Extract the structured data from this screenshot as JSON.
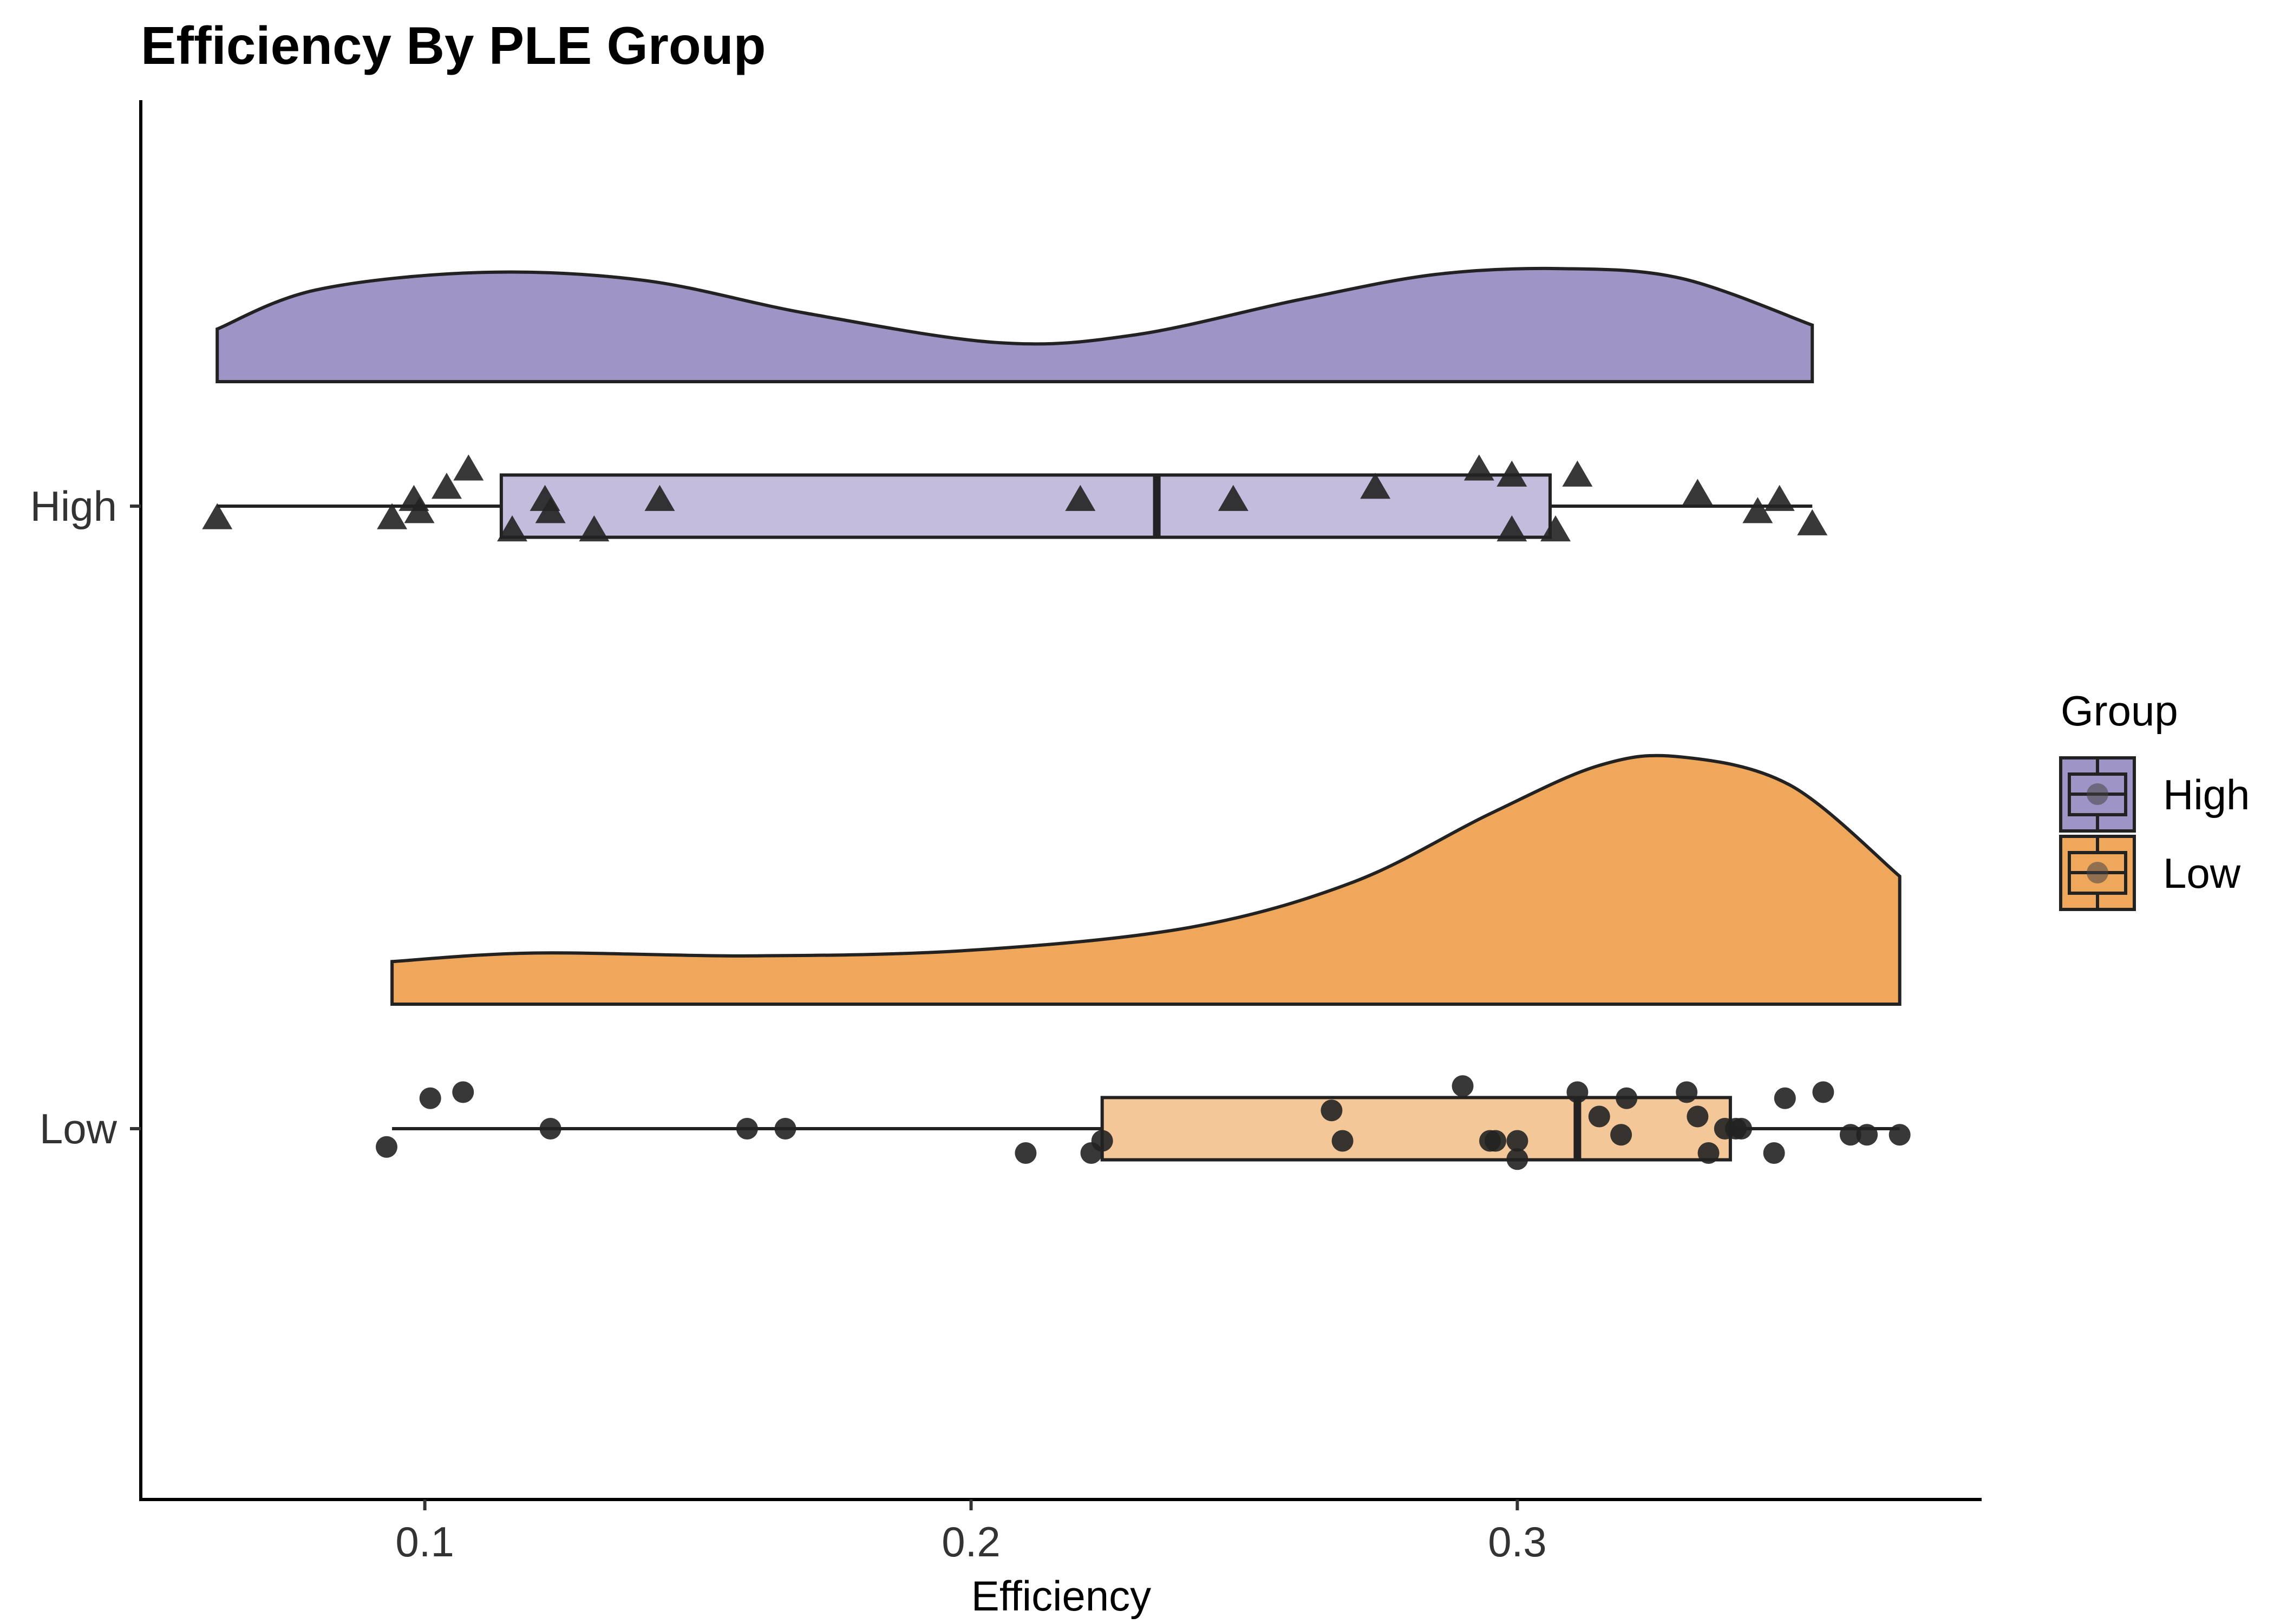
{
  "chart_data": {
    "type": "raincloud",
    "title": "Efficiency By PLE Group",
    "xlabel": "Efficiency",
    "ylabel": "",
    "xlim": [
      0.048,
      0.385
    ],
    "xticks": [
      0.1,
      0.2,
      0.3
    ],
    "xtick_labels": [
      "0.1",
      "0.2",
      "0.3"
    ],
    "categories": [
      "High",
      "Low"
    ],
    "legend": {
      "title": "Group",
      "position": "right",
      "entries": [
        "High",
        "Low"
      ]
    },
    "colors": {
      "High": "#9f94c6",
      "High_box": "#c3bcdc",
      "Low": "#eea75b",
      "Low_box": "#f4c799",
      "outline": "#222222",
      "points": "#222222"
    },
    "grid": false,
    "series": [
      {
        "name": "High",
        "point_shape": "triangle",
        "box": {
          "min": 0.062,
          "q1": 0.114,
          "median": 0.234,
          "q3": 0.306,
          "max": 0.354
        },
        "density": [
          [
            0.062,
            0.27
          ],
          [
            0.08,
            0.47
          ],
          [
            0.11,
            0.56
          ],
          [
            0.14,
            0.52
          ],
          [
            0.17,
            0.35
          ],
          [
            0.205,
            0.2
          ],
          [
            0.23,
            0.24
          ],
          [
            0.26,
            0.42
          ],
          [
            0.285,
            0.55
          ],
          [
            0.308,
            0.58
          ],
          [
            0.33,
            0.53
          ],
          [
            0.354,
            0.29
          ]
        ],
        "points": [
          [
            0.062,
            -0.02
          ],
          [
            0.094,
            -0.02
          ],
          [
            0.098,
            0.01
          ],
          [
            0.099,
            -0.01
          ],
          [
            0.104,
            0.03
          ],
          [
            0.108,
            0.06
          ],
          [
            0.116,
            -0.04
          ],
          [
            0.122,
            0.01
          ],
          [
            0.123,
            -0.01
          ],
          [
            0.131,
            -0.04
          ],
          [
            0.143,
            0.01
          ],
          [
            0.22,
            0.01
          ],
          [
            0.248,
            0.01
          ],
          [
            0.274,
            0.03
          ],
          [
            0.293,
            0.06
          ],
          [
            0.299,
            0.05
          ],
          [
            0.299,
            -0.04
          ],
          [
            0.307,
            -0.04
          ],
          [
            0.311,
            0.05
          ],
          [
            0.333,
            0.02
          ],
          [
            0.344,
            -0.01
          ],
          [
            0.348,
            0.01
          ],
          [
            0.354,
            -0.03
          ]
        ]
      },
      {
        "name": "Low",
        "point_shape": "circle",
        "box": {
          "min": 0.094,
          "q1": 0.224,
          "median": 0.311,
          "q3": 0.339,
          "max": 0.37
        },
        "density": [
          [
            0.094,
            0.15
          ],
          [
            0.12,
            0.18
          ],
          [
            0.16,
            0.17
          ],
          [
            0.2,
            0.19
          ],
          [
            0.24,
            0.27
          ],
          [
            0.27,
            0.43
          ],
          [
            0.295,
            0.67
          ],
          [
            0.315,
            0.84
          ],
          [
            0.33,
            0.87
          ],
          [
            0.35,
            0.77
          ],
          [
            0.37,
            0.45
          ]
        ],
        "points": [
          [
            0.093,
            -0.03
          ],
          [
            0.101,
            0.05
          ],
          [
            0.107,
            0.06
          ],
          [
            0.123,
            0.0
          ],
          [
            0.159,
            0.0
          ],
          [
            0.166,
            0.0
          ],
          [
            0.21,
            -0.04
          ],
          [
            0.222,
            -0.04
          ],
          [
            0.224,
            -0.02
          ],
          [
            0.266,
            0.03
          ],
          [
            0.268,
            -0.02
          ],
          [
            0.29,
            0.07
          ],
          [
            0.295,
            -0.02
          ],
          [
            0.296,
            -0.02
          ],
          [
            0.3,
            -0.02
          ],
          [
            0.3,
            -0.05
          ],
          [
            0.311,
            0.06
          ],
          [
            0.315,
            0.02
          ],
          [
            0.319,
            -0.01
          ],
          [
            0.32,
            0.05
          ],
          [
            0.331,
            0.06
          ],
          [
            0.333,
            0.02
          ],
          [
            0.335,
            -0.04
          ],
          [
            0.338,
            0.0
          ],
          [
            0.34,
            0.0
          ],
          [
            0.341,
            0.0
          ],
          [
            0.347,
            -0.04
          ],
          [
            0.349,
            0.05
          ],
          [
            0.356,
            0.06
          ],
          [
            0.361,
            -0.01
          ],
          [
            0.364,
            -0.01
          ],
          [
            0.37,
            -0.01
          ]
        ]
      }
    ]
  }
}
